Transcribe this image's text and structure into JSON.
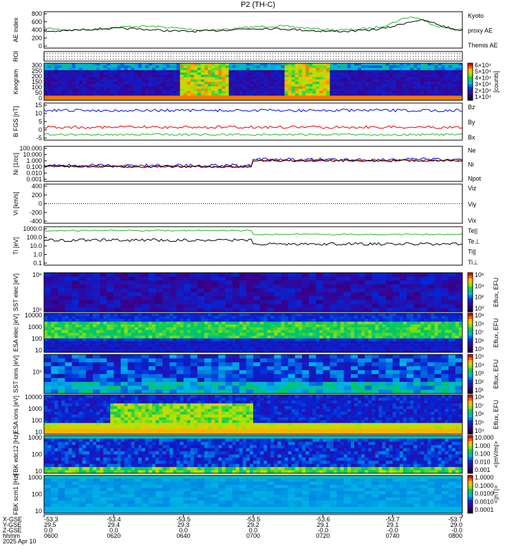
{
  "title": "P2 (TH-C)",
  "colors": {
    "green": "#22bb22",
    "red": "#dd0000",
    "blue": "#0000dd",
    "black": "#000000"
  },
  "chart_data": [
    {
      "type": "line",
      "name": "ae",
      "ylabel": "AE index",
      "yticks": [
        "800",
        "600",
        "400",
        "200",
        "0"
      ],
      "legend": [
        {
          "text": "Kyoto",
          "color": "#22bb22"
        },
        {
          "text": "proxy AE",
          "color": "#22bb22"
        },
        {
          "text": "Themis AE",
          "color": "#000000"
        }
      ]
    },
    {
      "type": "table",
      "name": "roi",
      "ylabel": "ROI"
    },
    {
      "type": "heatmap",
      "name": "keogram",
      "ylabel": "Keogram",
      "yticks": [
        "300",
        "250",
        "200",
        "150",
        "100",
        "50",
        "0"
      ],
      "cbar": [
        "6×10⁴",
        "5×10⁴",
        "4×10⁴",
        "3×10⁴",
        "2×10⁴",
        "1×10⁴"
      ],
      "cbar_label": "[counts]"
    },
    {
      "type": "line",
      "name": "bfgs",
      "ylabel": "B FGS [nT]",
      "yticks": [
        "15",
        "10",
        "5",
        "0",
        "-5"
      ],
      "legend": [
        {
          "text": "Bz",
          "color": "#dd0000"
        },
        {
          "text": "By",
          "color": "#22bb22"
        },
        {
          "text": "Bx",
          "color": "#0000dd"
        }
      ]
    },
    {
      "type": "line",
      "name": "ni",
      "ylabel": "Ni [1/cc]",
      "yticks": [
        "100.000",
        "10.000",
        "1.000",
        "0.100",
        "0.010",
        "0.001"
      ],
      "legend": [
        {
          "text": "Ne",
          "color": "#dd0000"
        },
        {
          "text": "Ni",
          "color": "#000000"
        },
        {
          "text": "Npot",
          "color": "#0000dd"
        }
      ]
    },
    {
      "type": "line",
      "name": "vi",
      "ylabel": "Vi [km/s]",
      "yticks": [
        "400",
        "200",
        "0",
        "-200",
        "-400"
      ],
      "legend": [
        {
          "text": "Viz",
          "color": "#dd0000"
        },
        {
          "text": "Viy",
          "color": "#22bb22"
        },
        {
          "text": "Vix",
          "color": "#0000dd"
        }
      ]
    },
    {
      "type": "line",
      "name": "ti",
      "ylabel": "Ti [eV]",
      "yticks": [
        "1000.0",
        "100.0",
        "10.0",
        "1.0",
        "0.1"
      ],
      "legend": [
        {
          "text": "Te||",
          "color": "#000000"
        },
        {
          "text": "Te⊥",
          "color": "#dd0000"
        },
        {
          "text": "Ti||",
          "color": "#22bb22"
        },
        {
          "text": "Ti⊥",
          "color": "#0000dd"
        }
      ]
    },
    {
      "type": "heatmap",
      "name": "sst_e",
      "ylabel": "SST elec [eV]",
      "yticks": [
        "10⁶",
        "10⁵"
      ],
      "cbar": [
        "10⁶",
        "10⁴",
        "10²",
        "10⁰"
      ],
      "cbar_label": "Eflux, EFU"
    },
    {
      "type": "heatmap",
      "name": "esa_e",
      "ylabel": "ESA elec [eV]",
      "yticks": [
        "10000",
        "1000",
        "100",
        "10"
      ],
      "cbar": [
        "10⁹",
        "10⁸",
        "10⁷",
        "10⁶",
        "10⁵"
      ],
      "cbar_label": "Eflux, EFU"
    },
    {
      "type": "heatmap",
      "name": "sst_i",
      "ylabel": "SST ions [eV]",
      "yticks": [
        "10⁵"
      ],
      "cbar": [
        "10⁵",
        "10⁴",
        "10³",
        "10²",
        "10¹"
      ],
      "cbar_label": "Eflux, EFU"
    },
    {
      "type": "heatmap",
      "name": "esa_i",
      "ylabel": "ESA ions [eV]",
      "yticks": [
        "10000",
        "1000",
        "100",
        "10"
      ],
      "cbar": [
        "10⁸",
        "10⁷",
        "10⁶",
        "10⁵",
        "10⁴"
      ],
      "cbar_label": "Eflux, EFU"
    },
    {
      "type": "heatmap",
      "name": "fbk_e",
      "ylabel": "FBK edc12 [Hz]",
      "yticks": [
        "1000",
        "100",
        "10"
      ],
      "cbar": [
        "10.000",
        "1.000",
        "0.100",
        "0.010",
        "0.001"
      ],
      "cbar_label": "<|mV/m|>"
    },
    {
      "type": "heatmap",
      "name": "fbk_b",
      "ylabel": "FBK scm1 [Hz]",
      "yticks": [
        "1000",
        "100",
        "10"
      ],
      "cbar": [
        "1.0000",
        "0.1000",
        "0.0100",
        "0.0010",
        "0.0001"
      ],
      "cbar_label": "<|nT|>"
    }
  ],
  "x_axis": {
    "row_labels": [
      "X-GSE",
      "Y-GSE",
      "Z-GSE",
      "hhmm",
      "2025 Apr 10"
    ],
    "columns": [
      {
        "x": "-53.3",
        "y": "29.5",
        "z": "0.0",
        "t": "0600"
      },
      {
        "x": "-53.4",
        "y": "29.4",
        "z": "0.0",
        "t": "0620"
      },
      {
        "x": "-53.5",
        "y": "29.3",
        "z": "0.0",
        "t": "0640"
      },
      {
        "x": "-53.5",
        "y": "29.2",
        "z": "0.0",
        "t": "0700"
      },
      {
        "x": "-53.6",
        "y": "29.1",
        "z": "-0.0",
        "t": "0720"
      },
      {
        "x": "-53.7",
        "y": "29.1",
        "z": "-0.0",
        "t": "0740"
      },
      {
        "x": "-53.7",
        "y": "29.0",
        "z": "-0.0",
        "t": "0800"
      }
    ]
  }
}
